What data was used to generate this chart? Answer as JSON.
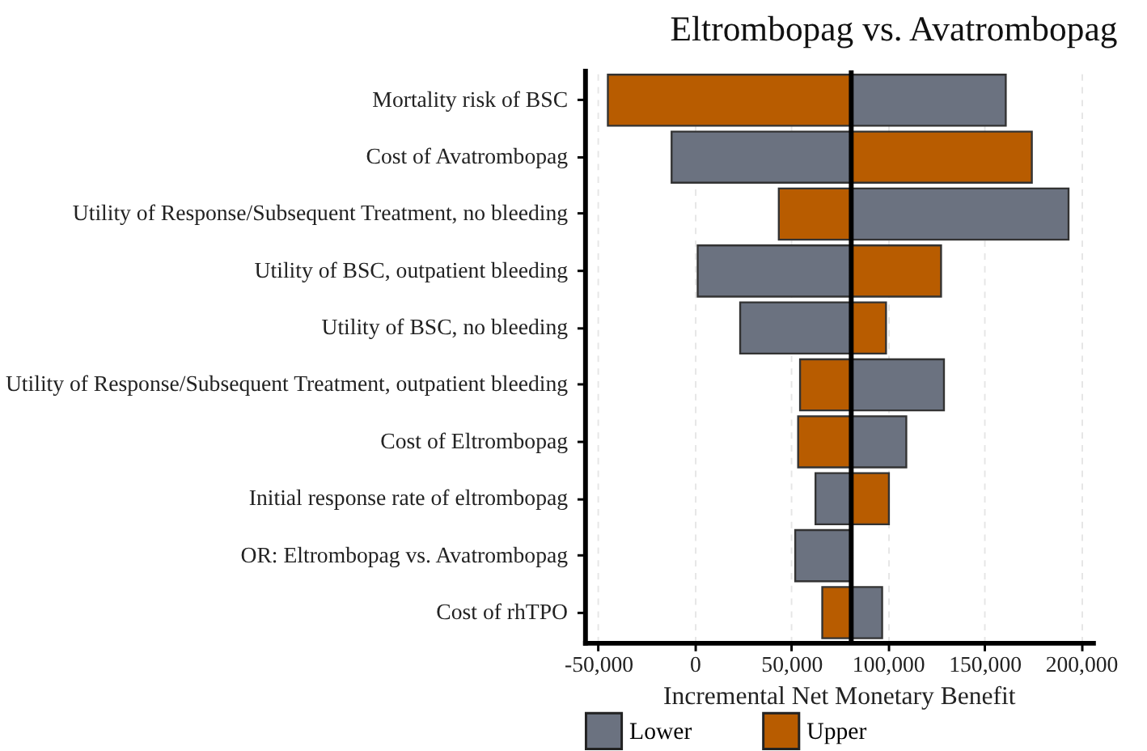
{
  "chart_data": {
    "type": "bar",
    "orientation": "horizontal",
    "title": "Eltrombopag vs. Avatrombopag",
    "xlabel": "Incremental Net Monetary Benefit",
    "categories": [
      "Mortality risk of BSC",
      "Cost of Avatrombopag",
      "Utility of Response/Subsequent Treatment, no bleeding",
      "Utility of BSC, outpatient bleeding",
      "Utility of BSC, no bleeding",
      "Utility of Response/Subsequent Treatment, outpatient bleeding",
      "Cost of Eltrombopag",
      "Initial response rate of eltrombopag",
      "OR: Eltrombopag vs. Avatrombopag",
      "Cost of rhTPO"
    ],
    "series": [
      {
        "name": "Lower",
        "color": "#6b7280",
        "base": [
          81000,
          81000,
          81000,
          81000,
          81000,
          81000,
          81000,
          81000,
          81000,
          81000
        ],
        "values": [
          80000,
          -93000,
          112500,
          -79500,
          -57500,
          48000,
          28500,
          -18500,
          -29000,
          16000
        ]
      },
      {
        "name": "Upper",
        "color": "#b85c00",
        "base": [
          81000,
          81000,
          81000,
          81000,
          81000,
          81000,
          81000,
          81000,
          null,
          81000
        ],
        "values": [
          -126000,
          93500,
          -37500,
          46500,
          18000,
          -26500,
          -27500,
          19500,
          null,
          -15000
        ]
      }
    ],
    "xlim": [
      -57000,
      206000
    ],
    "xticks": [
      {
        "value": -50000,
        "label": "-50,000"
      },
      0,
      {
        "value": 50000,
        "label": "50,000"
      },
      {
        "value": 100000,
        "label": "100,000"
      },
      {
        "value": 150000,
        "label": "150,000"
      },
      {
        "value": 200000,
        "label": "200,000"
      }
    ],
    "ref_lines": [
      {
        "axis": "x",
        "value": 81000,
        "color": "#000000"
      }
    ],
    "grid": "x",
    "legend": "bottom"
  }
}
